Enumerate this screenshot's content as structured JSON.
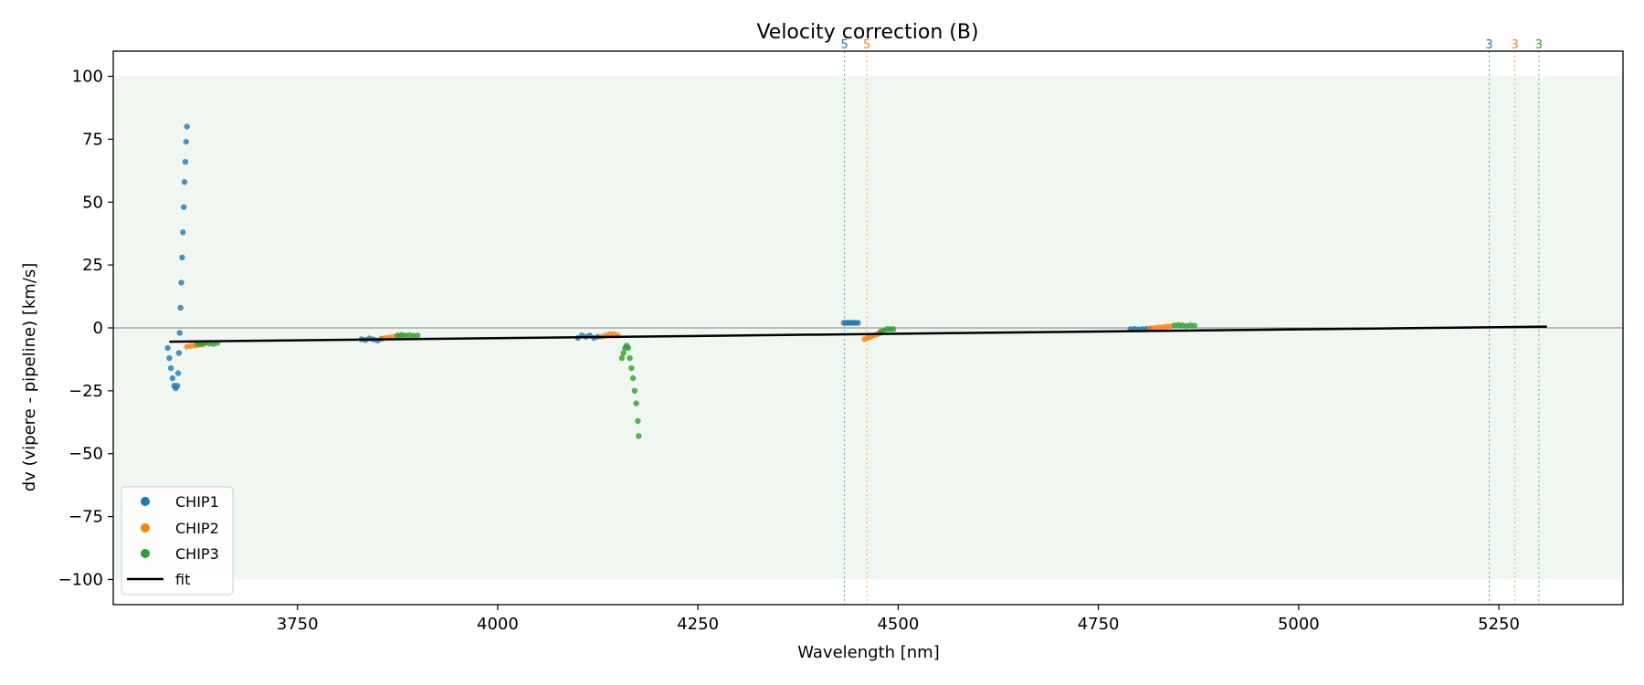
{
  "chart_data": {
    "type": "scatter",
    "title": "Velocity correction (B)",
    "xlabel": "Wavelength [nm]",
    "ylabel": "dv (vipere - pipeline) [km/s]",
    "xlim": [
      3520,
      5405
    ],
    "ylim": [
      -110,
      110
    ],
    "xticks": [
      3750,
      4000,
      4250,
      4500,
      4750,
      5000,
      5250
    ],
    "yticks": [
      -100,
      -75,
      -50,
      -25,
      0,
      25,
      50,
      75,
      100
    ],
    "xtick_labels": [
      "3750",
      "4000",
      "4250",
      "4500",
      "4750",
      "5000",
      "5250"
    ],
    "ytick_labels": [
      "−100",
      "−75",
      "−50",
      "−25",
      "0",
      "25",
      "50",
      "75",
      "100"
    ],
    "band": [
      -100,
      100
    ],
    "band_color": "#f0f7f0",
    "zero_line": 0,
    "grid": false,
    "legend_position": "lower-left",
    "series": [
      {
        "name": "CHIP1",
        "color": "#1f77b4",
        "segments": [
          {
            "x": [
              3588,
              3590,
              3592,
              3594,
              3596,
              3598,
              3600,
              3601,
              3602,
              3603,
              3604,
              3605,
              3606,
              3607,
              3608,
              3609,
              3610,
              3611,
              3612
            ],
            "y": [
              -8,
              -12,
              -16,
              -20,
              -23,
              -24,
              -23,
              -18,
              -10,
              -2,
              8,
              18,
              28,
              38,
              48,
              58,
              66,
              74,
              80
            ]
          },
          {
            "x": [
              3830,
              3835,
              3840,
              3845,
              3850,
              3855
            ],
            "y": [
              -4.5,
              -4.8,
              -4.2,
              -4.6,
              -5.0,
              -4.4
            ]
          },
          {
            "x": [
              4100,
              4105,
              4110,
              4115,
              4120,
              4125
            ],
            "y": [
              -4,
              -3,
              -3.5,
              -3,
              -4,
              -3.5
            ]
          },
          {
            "x": [
              4432,
              4435,
              4438,
              4441,
              4444,
              4447,
              4450
            ],
            "y": [
              2,
              2,
              2,
              2,
              2,
              2,
              2
            ]
          },
          {
            "x": [
              4790,
              4795,
              4800,
              4805,
              4810,
              4815
            ],
            "y": [
              -0.5,
              -0.4,
              -0.6,
              -0.5,
              -0.4,
              -0.3
            ]
          }
        ]
      },
      {
        "name": "CHIP2",
        "color": "#ff7f0e",
        "segments": [
          {
            "x": [
              3612,
              3617,
              3622,
              3627,
              3632
            ],
            "y": [
              -7.5,
              -7.2,
              -7.0,
              -6.8,
              -6.6
            ]
          },
          {
            "x": [
              3855,
              3860,
              3865,
              3870,
              3875,
              3880
            ],
            "y": [
              -4.2,
              -4.0,
              -3.8,
              -3.6,
              -3.4,
              -3.2
            ]
          },
          {
            "x": [
              4130,
              4135,
              4140,
              4145,
              4150
            ],
            "y": [
              -3.5,
              -3,
              -2.5,
              -2.5,
              -3
            ]
          },
          {
            "x": [
              4458,
              4462,
              4466,
              4470,
              4474,
              4478
            ],
            "y": [
              -4.5,
              -4,
              -3.5,
              -3,
              -2.5,
              -2
            ]
          },
          {
            "x": [
              4815,
              4820,
              4825,
              4830,
              4835,
              4840
            ],
            "y": [
              -0.3,
              0,
              0.2,
              0.3,
              0.5,
              0.6
            ]
          }
        ]
      },
      {
        "name": "CHIP3",
        "color": "#2ca02c",
        "segments": [
          {
            "x": [
              3625,
              3630,
              3635,
              3640,
              3645,
              3650
            ],
            "y": [
              -6.5,
              -6.3,
              -6.0,
              -6.2,
              -6.4,
              -6.0
            ]
          },
          {
            "x": [
              3875,
              3880,
              3885,
              3890,
              3895,
              3900
            ],
            "y": [
              -3.0,
              -2.8,
              -3.0,
              -2.9,
              -3.1,
              -3.0
            ]
          },
          {
            "x": [
              4155,
              4157,
              4159,
              4161,
              4163,
              4165,
              4167,
              4169,
              4171,
              4173,
              4175,
              4176
            ],
            "y": [
              -12,
              -10,
              -8,
              -7,
              -8,
              -12,
              -16,
              -20,
              -25,
              -30,
              -37,
              -43
            ]
          },
          {
            "x": [
              4478,
              4482,
              4486,
              4490,
              4494
            ],
            "y": [
              -1.5,
              -1,
              -0.5,
              -0.5,
              -0.5
            ]
          },
          {
            "x": [
              4845,
              4850,
              4855,
              4860,
              4865,
              4870
            ],
            "y": [
              1.0,
              1.2,
              1.0,
              0.8,
              1.0,
              0.9
            ]
          }
        ]
      }
    ],
    "fit": {
      "name": "fit",
      "color": "#000000",
      "x": [
        3590,
        5310
      ],
      "y": [
        -5.5,
        0.5
      ]
    },
    "vlines": [
      {
        "x": 4433,
        "label": "5",
        "color": "#1f77b4"
      },
      {
        "x": 4461,
        "label": "5",
        "color": "#ff7f0e"
      },
      {
        "x": 5238,
        "label": "3",
        "color": "#1f77b4"
      },
      {
        "x": 5270,
        "label": "3",
        "color": "#ff7f0e"
      },
      {
        "x": 5300,
        "label": "3",
        "color": "#2ca02c"
      }
    ],
    "legend": [
      {
        "label": "CHIP1",
        "kind": "marker",
        "color": "#1f77b4"
      },
      {
        "label": "CHIP2",
        "kind": "marker",
        "color": "#ff7f0e"
      },
      {
        "label": "CHIP3",
        "kind": "marker",
        "color": "#2ca02c"
      },
      {
        "label": "fit",
        "kind": "line",
        "color": "#000000"
      }
    ]
  }
}
